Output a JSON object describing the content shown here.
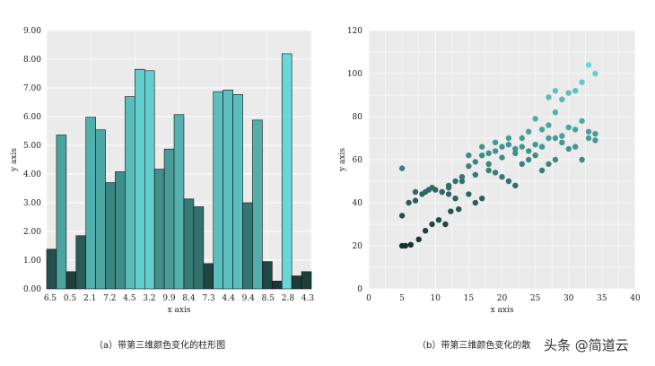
{
  "chart_data": [
    {
      "type": "bar",
      "xlabel": "x axis",
      "ylabel": "y axis",
      "ylim": [
        0,
        9
      ],
      "yticks": [
        "0.00",
        "1.00",
        "2.00",
        "3.00",
        "4.00",
        "5.00",
        "6.00",
        "7.00",
        "8.00",
        "9.00"
      ],
      "xtick_labels": [
        "6.5",
        "0.5",
        "2.1",
        "7.2",
        "4.5",
        "3.2",
        "9.9",
        "8.4",
        "7.3",
        "4.4",
        "9.4",
        "8.5",
        "2.8",
        "4.3"
      ],
      "values": [
        1.38,
        5.36,
        0.6,
        1.85,
        5.98,
        5.54,
        3.7,
        4.08,
        6.7,
        7.65,
        7.6,
        4.17,
        4.87,
        6.07,
        3.13,
        2.86,
        0.88,
        6.87,
        6.93,
        6.77,
        3.0,
        5.88,
        0.95,
        0.27,
        8.19,
        0.45,
        0.6
      ],
      "grid": true,
      "caption": "（a）带第三维颜色变化的柱形图"
    },
    {
      "type": "scatter",
      "xlabel": "x axis",
      "ylabel": "y axis",
      "xlim": [
        0,
        40
      ],
      "ylim": [
        0,
        120
      ],
      "xticks": [
        0,
        5,
        10,
        15,
        20,
        25,
        30,
        35,
        40
      ],
      "yticks": [
        0,
        20,
        40,
        60,
        80,
        100,
        120
      ],
      "points": [
        [
          5,
          20
        ],
        [
          5.5,
          20
        ],
        [
          6.3,
          20.5
        ],
        [
          7.5,
          23
        ],
        [
          8.5,
          27
        ],
        [
          9.5,
          30
        ],
        [
          10.5,
          32
        ],
        [
          11.5,
          30
        ],
        [
          12.3,
          36
        ],
        [
          13.5,
          37
        ],
        [
          5,
          34
        ],
        [
          6,
          40
        ],
        [
          7,
          41
        ],
        [
          8,
          44
        ],
        [
          9,
          46
        ],
        [
          10,
          46
        ],
        [
          11,
          45
        ],
        [
          12,
          47
        ],
        [
          13,
          50
        ],
        [
          14,
          52
        ],
        [
          15,
          57
        ],
        [
          16,
          59
        ],
        [
          17,
          62
        ],
        [
          18,
          63
        ],
        [
          19,
          64
        ],
        [
          20,
          66
        ],
        [
          21,
          67
        ],
        [
          22,
          65
        ],
        [
          23,
          70
        ],
        [
          24,
          73
        ],
        [
          25,
          79
        ],
        [
          26,
          74
        ],
        [
          27,
          76
        ],
        [
          28,
          82
        ],
        [
          29,
          88
        ],
        [
          30,
          91
        ],
        [
          31,
          92
        ],
        [
          32,
          96
        ],
        [
          33,
          104
        ],
        [
          34,
          100
        ],
        [
          5,
          56
        ],
        [
          7,
          45
        ],
        [
          8.5,
          45
        ],
        [
          9.5,
          47
        ],
        [
          11,
          45
        ],
        [
          12,
          44
        ],
        [
          13,
          42
        ],
        [
          15,
          44
        ],
        [
          16,
          40
        ],
        [
          17,
          42
        ],
        [
          18,
          55
        ],
        [
          19,
          54
        ],
        [
          20,
          52
        ],
        [
          21,
          50
        ],
        [
          22,
          48
        ],
        [
          23,
          58
        ],
        [
          24,
          60
        ],
        [
          25,
          62
        ],
        [
          26,
          55
        ],
        [
          27,
          58
        ],
        [
          28,
          60
        ],
        [
          29,
          68
        ],
        [
          30,
          65
        ],
        [
          31,
          66
        ],
        [
          32,
          60
        ],
        [
          33,
          70
        ],
        [
          34,
          69
        ],
        [
          34,
          72
        ],
        [
          32,
          78
        ],
        [
          30,
          75
        ],
        [
          28,
          70
        ],
        [
          26,
          66
        ],
        [
          24,
          64
        ],
        [
          22,
          63
        ],
        [
          20,
          61
        ],
        [
          18,
          58
        ],
        [
          16,
          53
        ],
        [
          14,
          50
        ],
        [
          12,
          48
        ],
        [
          15,
          62
        ],
        [
          17,
          66
        ],
        [
          19,
          68
        ],
        [
          21,
          70
        ],
        [
          23,
          66
        ],
        [
          25,
          67
        ],
        [
          27,
          70
        ],
        [
          29,
          71
        ],
        [
          31,
          74
        ],
        [
          33,
          73
        ],
        [
          27,
          89
        ],
        [
          28,
          92
        ]
      ],
      "grid": true,
      "caption": "（b）带第三维颜色变化的散"
    }
  ],
  "watermark": "头条 @简道云",
  "colors": {
    "low": "#17322e",
    "mid": "#3f8e89",
    "high": "#6ad6d8",
    "grid_bg": "#ebebeb"
  }
}
